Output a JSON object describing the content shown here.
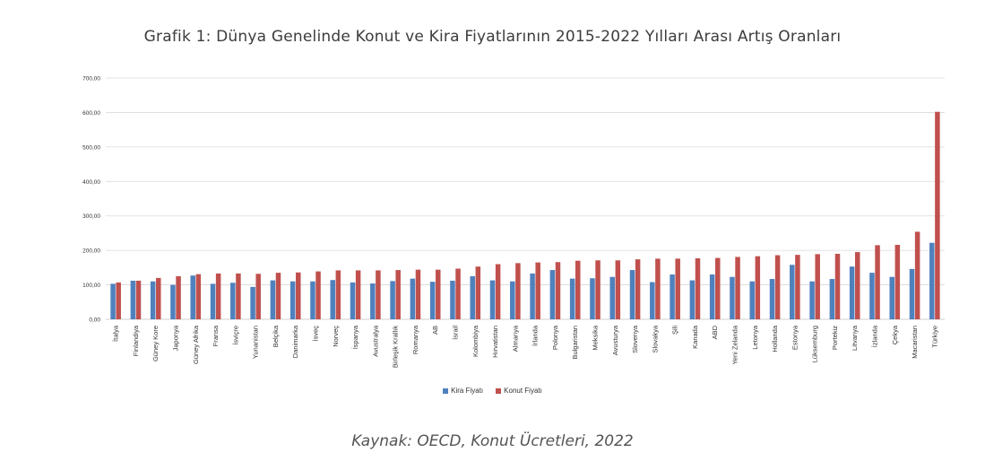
{
  "chart_data": {
    "type": "bar",
    "title": "Grafik 1: Dünya Genelinde Konut ve Kira Fiyatlarının 2015-2022 Yılları Arası Artış Oranları",
    "source": "Kaynak: OECD, Konut Ücretleri, 2022",
    "xlabel": "",
    "ylabel": "",
    "ylim": [
      0,
      700
    ],
    "yticks": [
      "0,00",
      "100,00",
      "200,00",
      "300,00",
      "400,00",
      "500,00",
      "600,00",
      "700,00"
    ],
    "grid": true,
    "legend_position": "bottom",
    "categories": [
      "İtalya",
      "Finlandiya",
      "Güney Kore",
      "Japonya",
      "Güney Afrika",
      "Fransa",
      "İsviçre",
      "Yunanistan",
      "Belçika",
      "Danimarka",
      "İsveç",
      "Norveç",
      "İspanya",
      "Avustralya",
      "Birleşik Krallık",
      "Romanya",
      "AB",
      "İsrail",
      "Kolombiya",
      "Hırvatistan",
      "Almanya",
      "İrlanda",
      "Polonya",
      "Bulgaristan",
      "Meksika",
      "Avusturya",
      "Slovenya",
      "Slovakya",
      "Şili",
      "Kanada",
      "ABD",
      "Yeni Zelanda",
      "Letonya",
      "Hollanda",
      "Estonya",
      "Lüksemburg",
      "Portekiz",
      "Litvanya",
      "İzlanda",
      "Çekya",
      "Macaristan",
      "Türkiye"
    ],
    "series": [
      {
        "name": "Kira Fiyatı",
        "color": "#4f81bd",
        "values": [
          103,
          112,
          110,
          100,
          127,
          103,
          106,
          94,
          113,
          110,
          110,
          114,
          107,
          104,
          111,
          118,
          109,
          112,
          125,
          113,
          110,
          133,
          143,
          118,
          119,
          123,
          143,
          108,
          130,
          113,
          130,
          123,
          110,
          117,
          158,
          110,
          117,
          153,
          135,
          123,
          146,
          222
        ]
      },
      {
        "name": "Konut Fiyatı",
        "color": "#c0504d",
        "values": [
          107,
          112,
          120,
          125,
          131,
          133,
          133,
          132,
          135,
          136,
          139,
          142,
          142,
          142,
          143,
          144,
          144,
          147,
          153,
          160,
          163,
          165,
          166,
          170,
          171,
          171,
          174,
          176,
          176,
          177,
          178,
          181,
          183,
          186,
          187,
          189,
          190,
          195,
          215,
          216,
          254,
          602
        ]
      }
    ]
  }
}
